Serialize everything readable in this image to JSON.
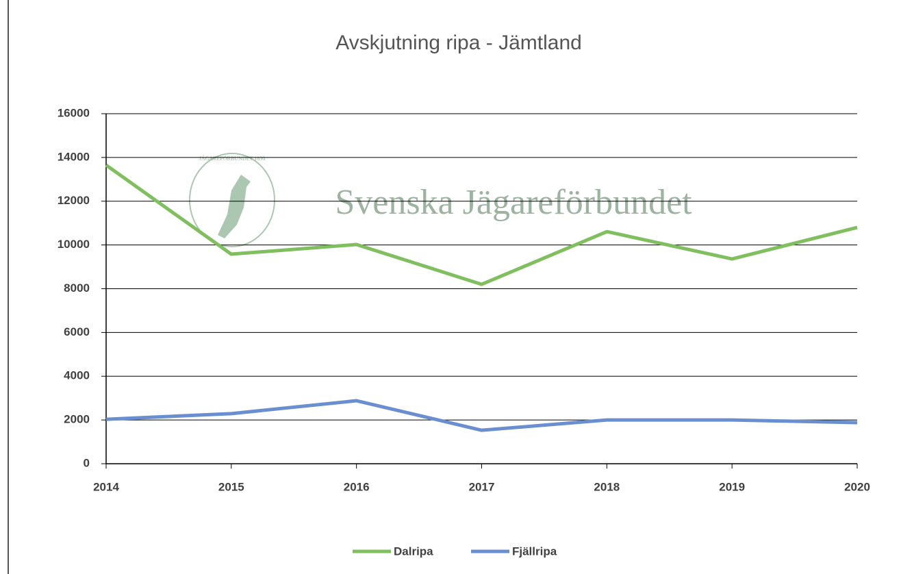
{
  "chart_data": {
    "type": "line",
    "title": "Avskjutning ripa - Jämtland",
    "watermark": "Svenska Jägareförbundet",
    "watermark_emblem": "JÄGAREFÖRBUNDET 1830",
    "x": [
      2014,
      2015,
      2016,
      2017,
      2018,
      2019,
      2020
    ],
    "xlim": [
      2014,
      2020
    ],
    "xticks": [
      2014,
      2015,
      2016,
      2017,
      2018,
      2019,
      2020
    ],
    "ylim": [
      0,
      16000
    ],
    "yticks": [
      0,
      2000,
      4000,
      6000,
      8000,
      10000,
      12000,
      14000,
      16000
    ],
    "grid": true,
    "legend": "bottom",
    "series": [
      {
        "name": "Dalripa",
        "color": "#7fbf5e",
        "values": [
          13650,
          9580,
          10020,
          8200,
          10610,
          9360,
          10800
        ]
      },
      {
        "name": "Fjällripa",
        "color": "#6a8fd0",
        "values": [
          2030,
          2290,
          2880,
          1530,
          2000,
          2000,
          1880
        ]
      }
    ]
  }
}
